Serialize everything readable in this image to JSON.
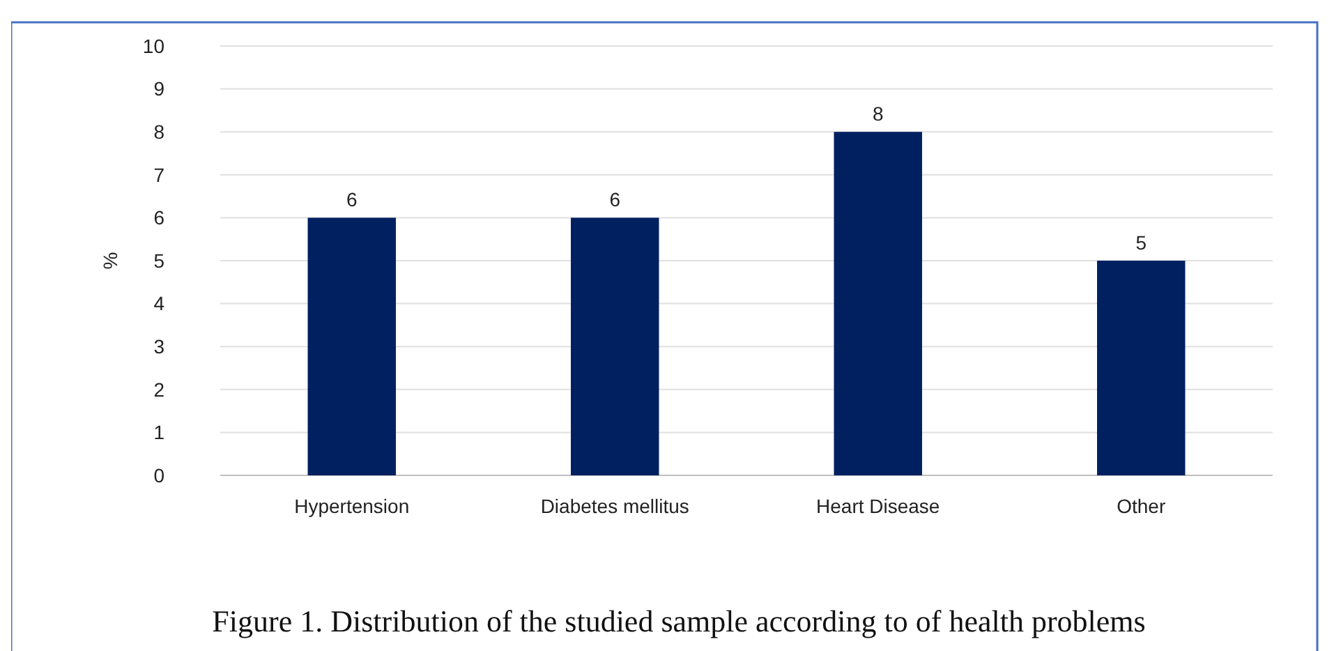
{
  "chart_data": {
    "type": "bar",
    "title": "Figure 1. Distribution of the studied sample according to of health problems",
    "ylabel": "%",
    "categories": [
      "Hypertension",
      "Diabetes mellitus",
      "Heart Disease",
      "Other"
    ],
    "values": [
      6,
      6,
      8,
      5
    ],
    "color": "#002060",
    "ylim": [
      0,
      10
    ],
    "yticks": [
      0,
      1,
      2,
      3,
      4,
      5,
      6,
      7,
      8,
      9,
      10
    ],
    "grid": "y",
    "data_labels": true
  }
}
